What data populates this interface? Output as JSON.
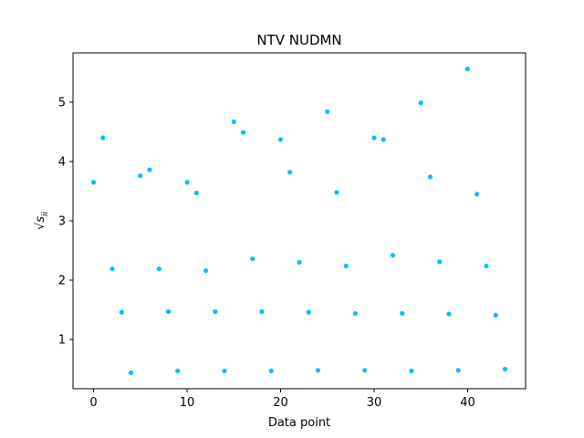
{
  "chart_data": {
    "type": "scatter",
    "title": "NTV NUDMN",
    "xlabel": "Data point",
    "ylabel": "√s_ii",
    "xlim": [
      -2.2,
      46.2
    ],
    "ylim": [
      0.17,
      5.83
    ],
    "xticks": [
      0,
      10,
      20,
      30,
      40
    ],
    "yticks": [
      1,
      2,
      3,
      4,
      5
    ],
    "grid": false,
    "color": "#00bfff",
    "series": [
      {
        "x": [
          0,
          1,
          2,
          3,
          4,
          5,
          6,
          7,
          8,
          9,
          10,
          11,
          12,
          13,
          14,
          15,
          16,
          17,
          18,
          19,
          20,
          21,
          22,
          23,
          24,
          25,
          26,
          27,
          28,
          29,
          30,
          31,
          32,
          33,
          34,
          35,
          36,
          37,
          38,
          39,
          40,
          41,
          42,
          43,
          44
        ],
        "y": [
          3.65,
          4.4,
          2.19,
          1.46,
          0.44,
          3.76,
          3.86,
          2.19,
          1.47,
          0.47,
          3.65,
          3.47,
          2.16,
          1.47,
          0.47,
          4.67,
          4.49,
          2.36,
          1.47,
          0.47,
          4.37,
          3.82,
          2.3,
          1.46,
          0.48,
          4.84,
          3.48,
          2.24,
          1.44,
          0.48,
          4.4,
          4.37,
          2.42,
          1.44,
          0.47,
          4.99,
          3.74,
          2.31,
          1.43,
          0.48,
          5.56,
          3.45,
          2.24,
          1.41,
          0.5
        ]
      }
    ]
  }
}
